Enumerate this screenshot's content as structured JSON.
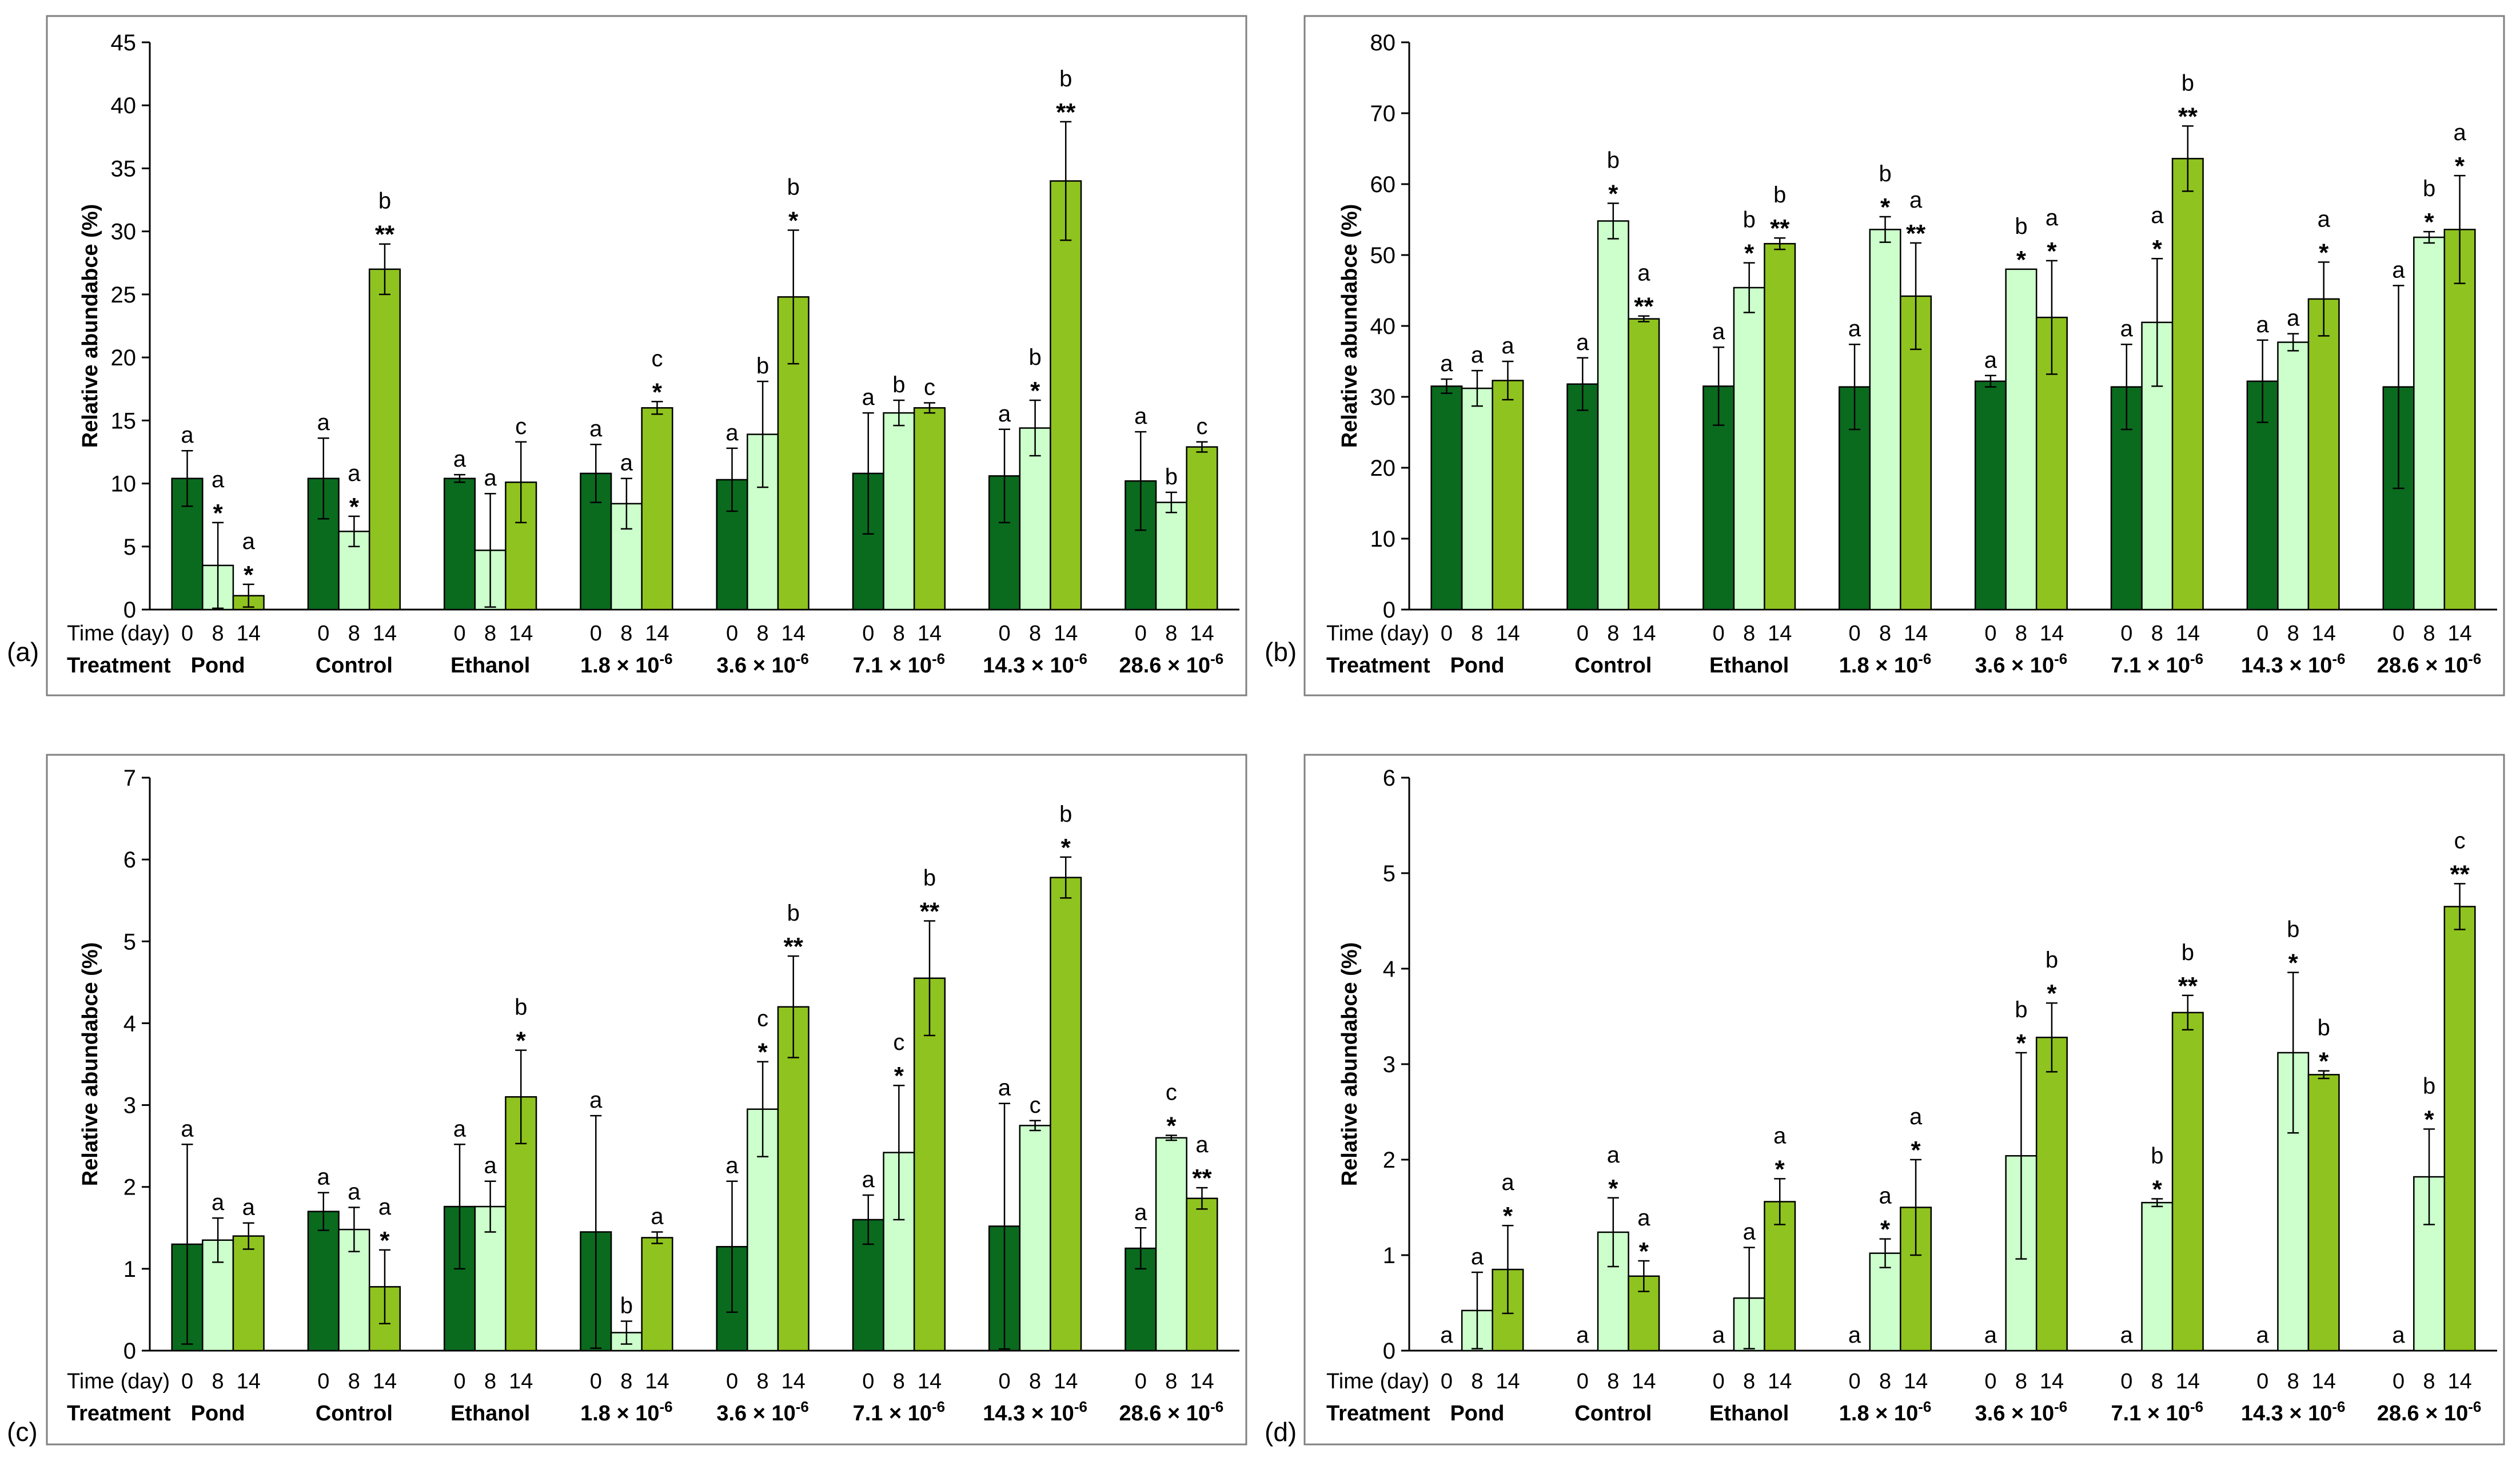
{
  "figure": {
    "panel_labels": [
      "(a)",
      "(b)",
      "(c)",
      "(d)"
    ],
    "colors": {
      "day0": "#0a6a1e",
      "day8": "#ccffcc",
      "day14": "#8fc31f",
      "frame": "#808080"
    }
  },
  "chart_data": [
    {
      "type": "bar",
      "panel": "(a)",
      "ylabel": "Relative abundabce (%)",
      "ylim": [
        0,
        45
      ],
      "yticks": [
        0,
        5,
        10,
        15,
        20,
        25,
        30,
        35,
        40,
        45
      ],
      "time_row_label": "Time (day)",
      "treatment_row_label": "Treatment",
      "time_labels": [
        "0",
        "8",
        "14"
      ],
      "treatments": [
        "Pond",
        "Control",
        "Ethanol",
        "1.8 × 10",
        "3.6 × 10",
        "7.1 × 10",
        "14.3 × 10",
        "28.6 × 10"
      ],
      "treatment_exponents": [
        "",
        "",
        "",
        "-6",
        "-6",
        "-6",
        "-6",
        "-6"
      ],
      "series": [
        {
          "values": [
            10.4,
            10.4,
            10.4,
            10.8,
            10.3,
            10.8,
            10.6,
            10.2
          ],
          "errors": [
            2.2,
            3.2,
            0.3,
            2.3,
            2.5,
            4.8,
            3.7,
            3.9
          ],
          "letters": [
            "a",
            "a",
            "a",
            "a",
            "a",
            "a",
            "a",
            "a"
          ],
          "stars": [
            "",
            "",
            "",
            "",
            "",
            "",
            "",
            ""
          ]
        },
        {
          "values": [
            3.5,
            6.2,
            4.7,
            8.4,
            13.9,
            15.6,
            14.4,
            8.5
          ],
          "errors": [
            3.4,
            1.2,
            4.5,
            2.0,
            4.2,
            1.0,
            2.2,
            0.8
          ],
          "letters": [
            "a",
            "a",
            "a",
            "a",
            "b",
            "b",
            "b",
            "b"
          ],
          "stars": [
            "*",
            "*",
            "",
            "",
            "",
            "",
            "*",
            ""
          ]
        },
        {
          "values": [
            1.1,
            27.0,
            10.1,
            16.0,
            24.8,
            16.0,
            34.0,
            12.9
          ],
          "errors": [
            0.9,
            2.0,
            3.2,
            0.5,
            5.3,
            0.4,
            4.7,
            0.4
          ],
          "letters": [
            "a",
            "b",
            "c",
            "c",
            "b",
            "c",
            "b",
            "c"
          ],
          "stars": [
            "*",
            "**",
            "",
            "*",
            "*",
            "",
            "**",
            ""
          ]
        }
      ]
    },
    {
      "type": "bar",
      "panel": "(b)",
      "ylabel": "Relative abundabce (%)",
      "ylim": [
        0,
        80
      ],
      "yticks": [
        0,
        10,
        20,
        30,
        40,
        50,
        60,
        70,
        80
      ],
      "time_row_label": "Time (day)",
      "treatment_row_label": "Treatment",
      "time_labels": [
        "0",
        "8",
        "14"
      ],
      "treatments": [
        "Pond",
        "Control",
        "Ethanol",
        "1.8 × 10",
        "3.6 × 10",
        "7.1 × 10",
        "14.3 × 10",
        "28.6 × 10"
      ],
      "treatment_exponents": [
        "",
        "",
        "",
        "-6",
        "-6",
        "-6",
        "-6",
        "-6"
      ],
      "series": [
        {
          "values": [
            31.5,
            31.8,
            31.5,
            31.4,
            32.2,
            31.4,
            32.2,
            31.4
          ],
          "errors": [
            1.0,
            3.7,
            5.5,
            6.0,
            0.8,
            6.0,
            5.8,
            14.3
          ],
          "letters": [
            "a",
            "a",
            "a",
            "a",
            "a",
            "a",
            "a",
            "a"
          ],
          "stars": [
            "",
            "",
            "",
            "",
            "",
            "",
            "",
            ""
          ]
        },
        {
          "values": [
            31.2,
            54.8,
            45.4,
            53.6,
            48.0,
            40.5,
            37.7,
            52.5
          ],
          "errors": [
            2.5,
            2.5,
            3.5,
            1.8,
            0.0,
            9.0,
            1.2,
            0.8
          ],
          "letters": [
            "a",
            "b",
            "b",
            "b",
            "b",
            "a",
            "a",
            "b"
          ],
          "stars": [
            "",
            "*",
            "*",
            "*",
            "*",
            "*",
            "",
            "*"
          ]
        },
        {
          "values": [
            32.3,
            41.0,
            51.6,
            44.2,
            41.2,
            63.6,
            43.8,
            53.6
          ],
          "errors": [
            2.7,
            0.4,
            0.8,
            7.5,
            8.0,
            4.6,
            5.2,
            7.6
          ],
          "letters": [
            "a",
            "a",
            "b",
            "a",
            "a",
            "b",
            "a",
            "a"
          ],
          "stars": [
            "",
            "**",
            "**",
            "**",
            "*",
            "**",
            "*",
            "*"
          ]
        }
      ]
    },
    {
      "type": "bar",
      "panel": "(c)",
      "ylabel": "Relative abundabce (%)",
      "ylim": [
        0,
        7
      ],
      "yticks": [
        0,
        1,
        2,
        3,
        4,
        5,
        6,
        7
      ],
      "time_row_label": "Time (day)",
      "treatment_row_label": "Treatment",
      "time_labels": [
        "0",
        "8",
        "14"
      ],
      "treatments": [
        "Pond",
        "Control",
        "Ethanol",
        "1.8 × 10",
        "3.6 × 10",
        "7.1 × 10",
        "14.3 × 10",
        "28.6 × 10"
      ],
      "treatment_exponents": [
        "",
        "",
        "",
        "-6",
        "-6",
        "-6",
        "-6",
        "-6"
      ],
      "series": [
        {
          "values": [
            1.3,
            1.7,
            1.76,
            1.45,
            1.27,
            1.6,
            1.52,
            1.25
          ],
          "errors": [
            1.22,
            0.23,
            0.76,
            1.42,
            0.8,
            0.3,
            1.5,
            0.25
          ],
          "letters": [
            "a",
            "a",
            "a",
            "a",
            "a",
            "a",
            "a",
            "a"
          ],
          "stars": [
            "",
            "",
            "",
            "",
            "",
            "",
            "",
            ""
          ]
        },
        {
          "values": [
            1.35,
            1.48,
            1.76,
            0.22,
            2.95,
            2.42,
            2.75,
            2.6
          ],
          "errors": [
            0.27,
            0.27,
            0.31,
            0.14,
            0.58,
            0.82,
            0.06,
            0.03
          ],
          "letters": [
            "a",
            "a",
            "a",
            "b",
            "c",
            "c",
            "c",
            "c"
          ],
          "stars": [
            "",
            "",
            "",
            "",
            "*",
            "*",
            "",
            "*"
          ]
        },
        {
          "values": [
            1.4,
            0.78,
            3.1,
            1.38,
            4.2,
            4.55,
            5.78,
            1.86
          ],
          "errors": [
            0.16,
            0.45,
            0.57,
            0.07,
            0.62,
            0.7,
            0.25,
            0.13
          ],
          "letters": [
            "a",
            "a",
            "b",
            "a",
            "b",
            "b",
            "b",
            "a"
          ],
          "stars": [
            "",
            "*",
            "*",
            "",
            "**",
            "**",
            "*",
            "**"
          ]
        }
      ]
    },
    {
      "type": "bar",
      "panel": "(d)",
      "ylabel": "Relative abundabce (%)",
      "ylim": [
        0,
        6
      ],
      "yticks": [
        0,
        1,
        2,
        3,
        4,
        5,
        6
      ],
      "time_row_label": "Time (day)",
      "treatment_row_label": "Treatment",
      "time_labels": [
        "0",
        "8",
        "14"
      ],
      "treatments": [
        "Pond",
        "Control",
        "Ethanol",
        "1.8 × 10",
        "3.6 × 10",
        "7.1 × 10",
        "14.3 × 10",
        "28.6 × 10"
      ],
      "treatment_exponents": [
        "",
        "",
        "",
        "-6",
        "-6",
        "-6",
        "-6",
        "-6"
      ],
      "series": [
        {
          "values": [
            0,
            0,
            0,
            0,
            0,
            0,
            0,
            0
          ],
          "errors": [
            0,
            0,
            0,
            0,
            0,
            0,
            0,
            0
          ],
          "letters": [
            "a",
            "a",
            "a",
            "a",
            "a",
            "a",
            "a",
            "a"
          ],
          "stars": [
            "",
            "",
            "",
            "",
            "",
            "",
            "",
            ""
          ]
        },
        {
          "values": [
            0.42,
            1.24,
            0.55,
            1.02,
            2.04,
            1.55,
            3.12,
            1.82
          ],
          "errors": [
            0.4,
            0.36,
            0.53,
            0.15,
            1.08,
            0.04,
            0.84,
            0.5
          ],
          "letters": [
            "a",
            "a",
            "a",
            "a",
            "b",
            "b",
            "b",
            "b"
          ],
          "stars": [
            "",
            "*",
            "",
            "*",
            "*",
            "*",
            "*",
            "*"
          ]
        },
        {
          "values": [
            0.85,
            0.78,
            1.56,
            1.5,
            3.28,
            3.54,
            2.89,
            4.65
          ],
          "errors": [
            0.46,
            0.16,
            0.24,
            0.5,
            0.36,
            0.18,
            0.04,
            0.24
          ],
          "letters": [
            "a",
            "a",
            "a",
            "a",
            "b",
            "b",
            "b",
            "c"
          ],
          "stars": [
            "*",
            "*",
            "*",
            "*",
            "*",
            "**",
            "*",
            "**"
          ]
        }
      ]
    }
  ]
}
